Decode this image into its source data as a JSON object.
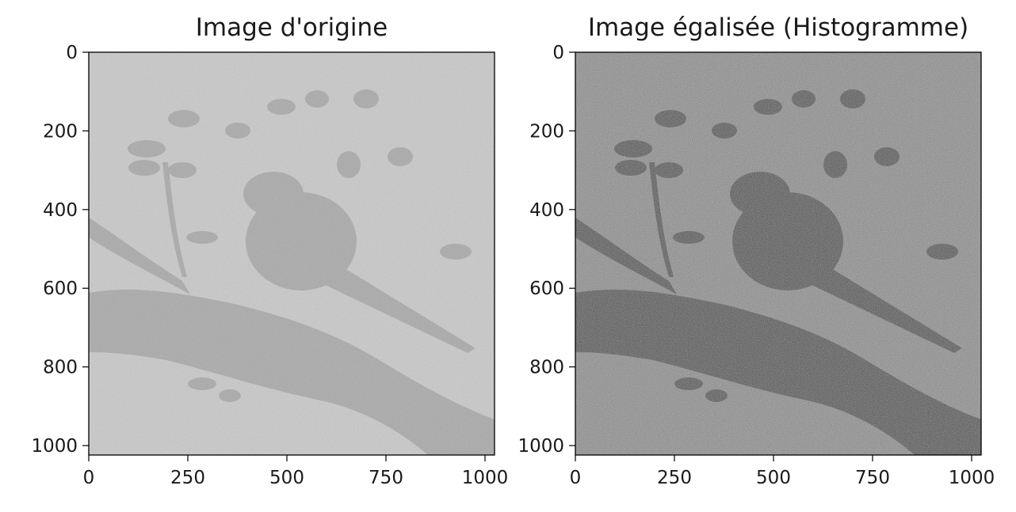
{
  "chart_data": [
    {
      "type": "image",
      "title": "Image d'origine",
      "xlabel": "",
      "ylabel": "",
      "xlim": [
        0,
        1024
      ],
      "ylim": [
        1024,
        0
      ],
      "xticks": [
        0,
        250,
        500,
        750,
        1000
      ],
      "yticks": [
        0,
        200,
        400,
        600,
        800,
        1000
      ],
      "xtick_labels": [
        "0",
        "250",
        "500",
        "750",
        "1000"
      ],
      "ytick_labels": [
        "0",
        "200",
        "400",
        "600",
        "800",
        "1000"
      ],
      "colormap": "gray",
      "tone": {
        "background": "#c8c8c8",
        "foreground": "#a8a8a8",
        "noise": 0.08
      },
      "grid": false
    },
    {
      "type": "image",
      "title": "Image égalisée (Histogramme)",
      "xlabel": "",
      "ylabel": "",
      "xlim": [
        0,
        1024
      ],
      "ylim": [
        1024,
        0
      ],
      "xticks": [
        0,
        250,
        500,
        750,
        1000
      ],
      "yticks": [
        0,
        200,
        400,
        600,
        800,
        1000
      ],
      "xtick_labels": [
        "0",
        "250",
        "500",
        "750",
        "1000"
      ],
      "ytick_labels": [
        "0",
        "200",
        "400",
        "600",
        "800",
        "1000"
      ],
      "colormap": "gray",
      "tone": {
        "background": "#8a8a8a",
        "foreground": "#4e4e4e",
        "noise": 0.25
      },
      "grid": false
    }
  ]
}
